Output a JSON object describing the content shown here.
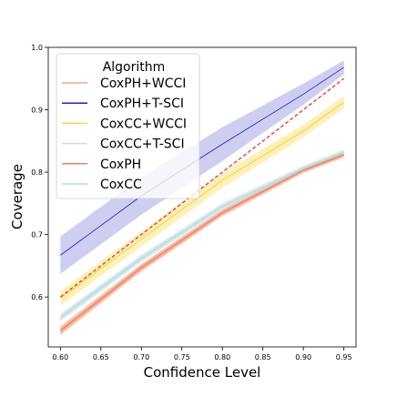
{
  "chart_data": {
    "type": "line",
    "title": "",
    "xlabel": "Confidence Level",
    "ylabel": "Coverage",
    "xlim": [
      0.585,
      0.965
    ],
    "ylim": [
      0.52,
      1.0
    ],
    "xticks": [
      "0.60",
      "0.65",
      "0.70",
      "0.75",
      "0.80",
      "0.85",
      "0.90",
      "0.95"
    ],
    "xtick_values": [
      0.6,
      0.65,
      0.7,
      0.75,
      0.8,
      0.85,
      0.9,
      0.95
    ],
    "yticks": [
      "0.6",
      "0.7",
      "0.8",
      "0.9",
      "1.0"
    ],
    "ytick_values": [
      0.6,
      0.7,
      0.8,
      0.9,
      1.0
    ],
    "grid": false,
    "legend_title": "Algorithm",
    "legend_position": "top-left",
    "x": [
      0.6,
      0.7,
      0.8,
      0.9,
      0.95
    ],
    "series": [
      {
        "name": "CoxPH+WCCI",
        "color": "#f4a582",
        "values": [
          0.546,
          0.647,
          0.735,
          0.803,
          0.828
        ],
        "band_lower": [
          0.538,
          0.641,
          0.729,
          0.798,
          0.823
        ],
        "band_upper": [
          0.554,
          0.653,
          0.741,
          0.808,
          0.833
        ]
      },
      {
        "name": "CoxPH+T-SCI",
        "color": "#1f1fbf",
        "values": [
          0.667,
          0.762,
          0.845,
          0.925,
          0.968
        ],
        "band_lower": [
          0.637,
          0.732,
          0.818,
          0.908,
          0.957
        ],
        "band_upper": [
          0.697,
          0.792,
          0.872,
          0.942,
          0.979
        ]
      },
      {
        "name": "CoxCC+WCCI",
        "color": "#f5d83c",
        "values": [
          0.598,
          0.693,
          0.787,
          0.866,
          0.912
        ],
        "band_lower": [
          0.586,
          0.681,
          0.775,
          0.856,
          0.902
        ],
        "band_upper": [
          0.61,
          0.705,
          0.799,
          0.876,
          0.922
        ]
      },
      {
        "name": "CoxCC+T-SCI",
        "color": "#d9d9d9",
        "values": [
          0.567,
          0.662,
          0.745,
          0.806,
          0.832
        ],
        "band_lower": [
          0.561,
          0.656,
          0.739,
          0.801,
          0.827
        ],
        "band_upper": [
          0.573,
          0.668,
          0.751,
          0.811,
          0.837
        ]
      },
      {
        "name": "CoxPH",
        "color": "#f07f5a",
        "values": [
          0.546,
          0.647,
          0.735,
          0.803,
          0.828
        ],
        "band_lower": [
          0.541,
          0.642,
          0.731,
          0.8,
          0.825
        ],
        "band_upper": [
          0.551,
          0.652,
          0.739,
          0.806,
          0.831
        ]
      },
      {
        "name": "CoxCC",
        "color": "#a9dfe6",
        "values": [
          0.567,
          0.662,
          0.745,
          0.806,
          0.832
        ],
        "band_lower": [
          0.562,
          0.657,
          0.741,
          0.803,
          0.829
        ],
        "band_upper": [
          0.572,
          0.667,
          0.749,
          0.809,
          0.835
        ]
      }
    ],
    "reference_line": {
      "style": "dashed",
      "color": "#e3342f",
      "x": [
        0.6,
        0.95
      ],
      "y": [
        0.6,
        0.95
      ]
    }
  }
}
